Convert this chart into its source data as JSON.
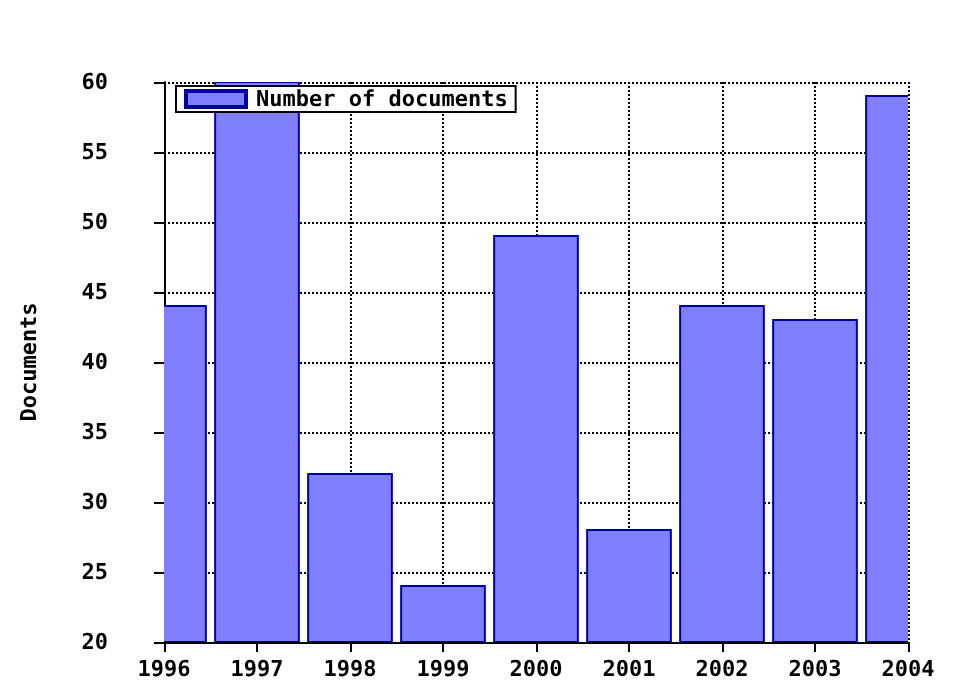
{
  "chart_data": {
    "type": "bar",
    "ylabel": "Documents",
    "x": [
      1996,
      1997,
      1998,
      1999,
      2000,
      2001,
      2002,
      2003,
      2004
    ],
    "series": [
      {
        "name": "Number of documents",
        "color": "#8080ff",
        "values": [
          44,
          60,
          32,
          24,
          49,
          28,
          44,
          43,
          59
        ]
      }
    ],
    "xlim": [
      1996,
      2004
    ],
    "xticks": [
      1996,
      1997,
      1998,
      1999,
      2000,
      2001,
      2002,
      2003,
      2004
    ],
    "ylim": [
      20,
      60
    ],
    "yticks": [
      20,
      25,
      30,
      35,
      40,
      45,
      50,
      55,
      60
    ],
    "grid": true,
    "legend": "top left"
  }
}
